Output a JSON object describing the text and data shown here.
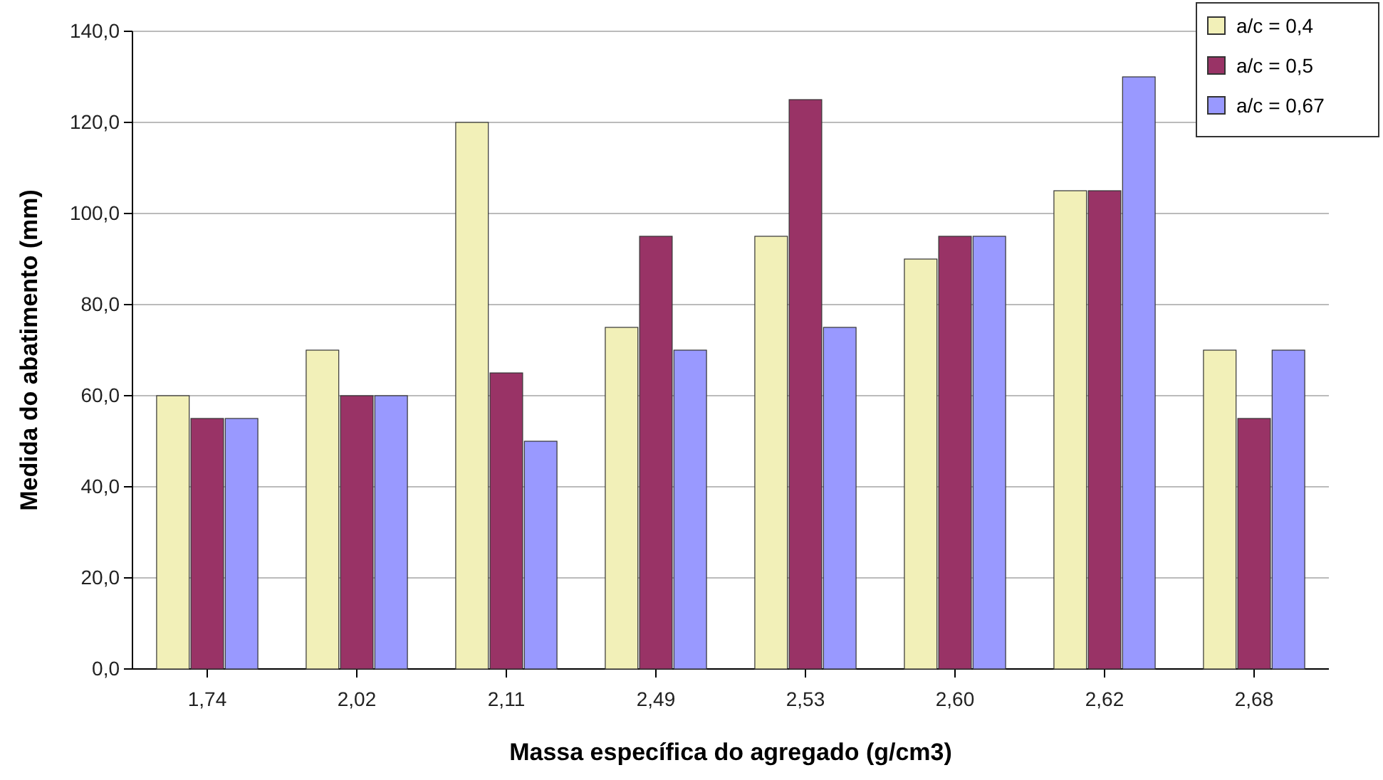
{
  "chart_data": {
    "type": "bar",
    "xlabel": "Massa específica do agregado (g/cm3)",
    "ylabel": "Medida do abatimento (mm)",
    "categories": [
      "1,74",
      "2,02",
      "2,11",
      "2,49",
      "2,53",
      "2,60",
      "2,62",
      "2,68"
    ],
    "series": [
      {
        "name": "a/c = 0,4",
        "color": "#f2f0b8",
        "values": [
          60,
          70,
          120,
          75,
          95,
          90,
          105,
          70
        ]
      },
      {
        "name": "a/c = 0,5",
        "color": "#993366",
        "values": [
          55,
          60,
          65,
          95,
          125,
          95,
          105,
          55
        ]
      },
      {
        "name": "a/c = 0,67",
        "color": "#9999ff",
        "values": [
          55,
          60,
          50,
          70,
          75,
          95,
          130,
          70
        ]
      }
    ],
    "ylim": [
      0,
      140
    ],
    "yticks": [
      {
        "value": 0,
        "label": "0,0"
      },
      {
        "value": 20,
        "label": "20,0"
      },
      {
        "value": 40,
        "label": "40,0"
      },
      {
        "value": 60,
        "label": "60,0"
      },
      {
        "value": 80,
        "label": "80,0"
      },
      {
        "value": 100,
        "label": "100,0"
      },
      {
        "value": 120,
        "label": "120,0"
      },
      {
        "value": 140,
        "label": "140,0"
      }
    ],
    "grid": "y",
    "legend": "top right"
  }
}
